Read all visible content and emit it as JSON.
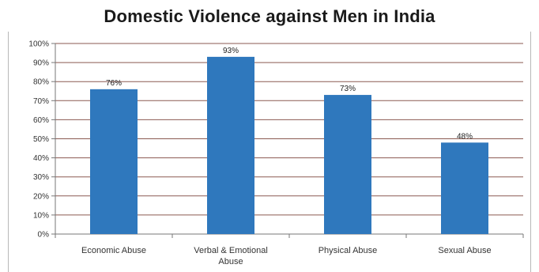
{
  "chart_data": {
    "type": "bar",
    "title": "Domestic Violence against Men in India",
    "categories": [
      "Economic Abuse",
      "Verbal & Emotional Abuse",
      "Physical Abuse",
      "Sexual Abuse"
    ],
    "values": [
      76,
      93,
      73,
      48
    ],
    "value_labels": [
      "76%",
      "93%",
      "73%",
      "48%"
    ],
    "y_tick_labels": [
      "0%",
      "10%",
      "20%",
      "30%",
      "40%",
      "50%",
      "60%",
      "70%",
      "80%",
      "90%",
      "100%"
    ],
    "ylim": [
      0,
      100
    ],
    "y_unit": "%",
    "grid": true,
    "legend": "none",
    "bar_color": "#2f78bd",
    "grid_color": "#8b5a52"
  }
}
